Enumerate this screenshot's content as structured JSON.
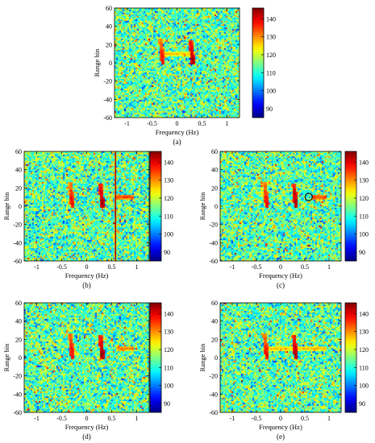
{
  "chart_data": [
    {
      "id": "a",
      "type": "heatmap",
      "caption": "(a)",
      "xlabel": "Frequency (Hz)",
      "ylabel": "Range bin",
      "xlim": [
        -1.25,
        1.25
      ],
      "ylim": [
        -60,
        60
      ],
      "xticks": [
        "-1",
        "-0.5",
        "0",
        "0.5",
        "1"
      ],
      "yticks": [
        "60",
        "40",
        "20",
        "0",
        "-20",
        "-40",
        "-60"
      ],
      "colorbar": {
        "min": 85,
        "max": 146,
        "ticks": [
          "140",
          "130",
          "120",
          "110",
          "100",
          "90"
        ]
      },
      "features": [
        {
          "kind": "vertical-streak",
          "x": -0.3,
          "y_from": -2,
          "y_to": 26,
          "level": 140
        },
        {
          "kind": "vertical-streak",
          "x": 0.3,
          "y_from": -2,
          "y_to": 25,
          "level": 145
        },
        {
          "kind": "horizontal-band",
          "y": 10,
          "x_from": -0.35,
          "x_to": 0.35,
          "level": 128
        }
      ]
    },
    {
      "id": "b",
      "type": "heatmap",
      "caption": "(b)",
      "xlabel": "Frequency (Hz)",
      "ylabel": "Range bin",
      "xlim": [
        -1.25,
        1.25
      ],
      "ylim": [
        -60,
        60
      ],
      "xticks": [
        "-1",
        "-0.5",
        "0",
        "0.5",
        "1"
      ],
      "yticks": [
        "60",
        "40",
        "20",
        "0",
        "-20",
        "-40",
        "-60"
      ],
      "colorbar": {
        "min": 85,
        "max": 146,
        "ticks": [
          "140",
          "130",
          "120",
          "110",
          "100",
          "90"
        ]
      },
      "features": [
        {
          "kind": "vertical-streak",
          "x": -0.3,
          "y_from": -2,
          "y_to": 26,
          "level": 140
        },
        {
          "kind": "vertical-streak",
          "x": 0.3,
          "y_from": -2,
          "y_to": 25,
          "level": 145
        },
        {
          "kind": "horizontal-band",
          "y": 10,
          "x_from": 0.6,
          "x_to": 0.95,
          "level": 136
        },
        {
          "kind": "vertical-line",
          "x": 0.58,
          "level": 133
        }
      ]
    },
    {
      "id": "c",
      "type": "heatmap",
      "caption": "(c)",
      "xlabel": "Frequency (Hz)",
      "ylabel": "Range bin",
      "xlim": [
        -1.25,
        1.25
      ],
      "ylim": [
        -60,
        60
      ],
      "xticks": [
        "-1",
        "-0.5",
        "0",
        "0.5",
        "1"
      ],
      "yticks": [
        "60",
        "40",
        "20",
        "0",
        "-20",
        "-40",
        "-60"
      ],
      "colorbar": {
        "min": 85,
        "max": 146,
        "ticks": [
          "140",
          "130",
          "120",
          "110",
          "100",
          "90"
        ]
      },
      "features": [
        {
          "kind": "vertical-streak",
          "x": -0.3,
          "y_from": -2,
          "y_to": 26,
          "level": 140
        },
        {
          "kind": "vertical-streak",
          "x": 0.3,
          "y_from": -2,
          "y_to": 25,
          "level": 145
        },
        {
          "kind": "horizontal-band",
          "y": 10,
          "x_from": 0.65,
          "x_to": 0.95,
          "level": 136
        },
        {
          "kind": "circle-marker",
          "x": 0.58,
          "y": 10
        }
      ]
    },
    {
      "id": "d",
      "type": "heatmap",
      "caption": "(d)",
      "xlabel": "Frequency (Hz)",
      "ylabel": "Range bin",
      "xlim": [
        -1.25,
        1.25
      ],
      "ylim": [
        -60,
        60
      ],
      "xticks": [
        "-1",
        "-0.5",
        "0",
        "0.5",
        "1"
      ],
      "yticks": [
        "60",
        "40",
        "20",
        "0",
        "-20",
        "-40",
        "-60"
      ],
      "colorbar": {
        "min": 85,
        "max": 146,
        "ticks": [
          "140",
          "130",
          "120",
          "110",
          "100",
          "90"
        ]
      },
      "features": [
        {
          "kind": "vertical-streak",
          "x": -0.3,
          "y_from": -2,
          "y_to": 26,
          "level": 140
        },
        {
          "kind": "vertical-streak",
          "x": 0.3,
          "y_from": -2,
          "y_to": 25,
          "level": 145
        },
        {
          "kind": "horizontal-band",
          "y": 10,
          "x_from": 0.6,
          "x_to": 0.95,
          "level": 132
        }
      ]
    },
    {
      "id": "e",
      "type": "heatmap",
      "caption": "(e)",
      "xlabel": "Frequency (Hz)",
      "ylabel": "Range bin",
      "xlim": [
        -1.25,
        1.25
      ],
      "ylim": [
        -60,
        60
      ],
      "xticks": [
        "-1",
        "-0.5",
        "0",
        "0.5",
        "1"
      ],
      "yticks": [
        "60",
        "40",
        "20",
        "0",
        "-20",
        "-40",
        "-60"
      ],
      "colorbar": {
        "min": 85,
        "max": 146,
        "ticks": [
          "140",
          "130",
          "120",
          "110",
          "100",
          "90"
        ]
      },
      "features": [
        {
          "kind": "vertical-streak",
          "x": -0.3,
          "y_from": -2,
          "y_to": 26,
          "level": 140
        },
        {
          "kind": "vertical-streak",
          "x": 0.3,
          "y_from": -2,
          "y_to": 25,
          "level": 145
        },
        {
          "kind": "horizontal-band",
          "y": 10,
          "x_from": -0.35,
          "x_to": 0.95,
          "level": 128
        }
      ]
    }
  ]
}
